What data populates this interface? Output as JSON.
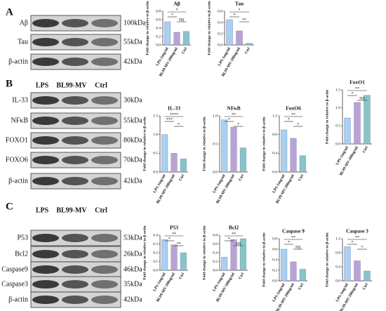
{
  "panels": [
    {
      "letter": "A",
      "rows": [
        {
          "name": "Aβ",
          "size": "100kDa"
        },
        {
          "name": "Tau",
          "size": "55kDa"
        },
        {
          "name": "β-actin",
          "size": "42kDa"
        }
      ]
    },
    {
      "letter": "B",
      "lanes": [
        "LPS",
        "BL99-MV",
        "Ctrl"
      ],
      "rows": [
        {
          "name": "IL-33",
          "size": "30kDa"
        },
        {
          "name": "NFκB",
          "size": "55kDa"
        },
        {
          "name": "FOXO1",
          "size": "80kDa"
        },
        {
          "name": "FOXO6",
          "size": "70kDa"
        },
        {
          "name": "β-actin",
          "size": "42kDa"
        }
      ]
    },
    {
      "letter": "C",
      "lanes": [
        "LPS",
        "BL99-MV",
        "Ctrl"
      ],
      "rows": [
        {
          "name": "P53",
          "size": "53kDa"
        },
        {
          "name": "Bcl2",
          "size": "26kDa"
        },
        {
          "name": "Caspase9",
          "size": "46kDa"
        },
        {
          "name": "Caspase3",
          "size": "35kDa"
        },
        {
          "name": "β-actin",
          "size": "42kDa"
        }
      ]
    }
  ],
  "chart_data": [
    {
      "type": "bar",
      "title": "Aβ",
      "ylabel": "Fold change to relative to β-actin",
      "categories": [
        "LPS-1mg/ml",
        "BL99-MV-200ug/ml",
        "Ctrl"
      ],
      "values": [
        0.55,
        0.3,
        0.32
      ],
      "colors": [
        "#a9d0f0",
        "#b9a2d6",
        "#86c5c9"
      ],
      "ylim": [
        0,
        0.8
      ],
      "yticks": [
        {
          "value": 0,
          "label": "0.0"
        },
        {
          "value": 0.2,
          "label": "0.2"
        },
        {
          "value": 0.4,
          "label": "0.4"
        },
        {
          "value": 0.6,
          "label": "0.6"
        },
        {
          "value": 0.8,
          "label": "0.8"
        }
      ],
      "annotations": [
        {
          "label": "*",
          "pair": [
            0,
            2
          ]
        },
        {
          "label": "*",
          "pair": [
            0,
            1
          ]
        },
        {
          "label": "NS",
          "pair": [
            1,
            2
          ]
        }
      ]
    },
    {
      "type": "bar",
      "title": "Tau",
      "ylabel": "Fold change to relative to β-actin",
      "categories": [
        "LPS-1mg/ml",
        "BL99-MV-200ug/ml",
        "Ctrl"
      ],
      "values": [
        0.45,
        0.25,
        0.03
      ],
      "colors": [
        "#a9d0f0",
        "#b9a2d6",
        "#86c5c9"
      ],
      "ylim": [
        0,
        0.6
      ],
      "yticks": [
        {
          "value": 0,
          "label": "0.0"
        },
        {
          "value": 0.2,
          "label": "0.2"
        },
        {
          "value": 0.4,
          "label": "0.4"
        },
        {
          "value": 0.6,
          "label": "0.6"
        }
      ],
      "annotations": [
        {
          "label": "*",
          "pair": [
            0,
            2
          ]
        },
        {
          "label": "*",
          "pair": [
            0,
            1
          ]
        },
        {
          "label": "**",
          "pair": [
            1,
            2
          ]
        }
      ]
    },
    {
      "type": "bar",
      "title": "IL-33",
      "ylabel": "Fold change to relative to β-actin",
      "categories": [
        "LPS-1mg/ml",
        "BL99-MV-200ug/ml",
        "Ctrl"
      ],
      "values": [
        1.0,
        0.5,
        0.35
      ],
      "colors": [
        "#a9d0f0",
        "#b9a2d6",
        "#86c5c9"
      ],
      "ylim": [
        0,
        1.5
      ],
      "yticks": [
        {
          "value": 0,
          "label": "0.0"
        },
        {
          "value": 0.5,
          "label": "0.5"
        },
        {
          "value": 1,
          "label": "1.0"
        },
        {
          "value": 1.5,
          "label": "1.5"
        }
      ],
      "annotations": [
        {
          "label": "****",
          "pair": [
            0,
            2
          ]
        },
        {
          "label": "***",
          "pair": [
            0,
            1
          ]
        },
        {
          "label": "*",
          "pair": [
            1,
            2
          ]
        }
      ]
    },
    {
      "type": "bar",
      "title": "NFκB",
      "ylabel": "Fold change to relative to β-actin",
      "categories": [
        "LPS-1mg/ml",
        "BL99-MV-200ug/ml",
        "Ctrl"
      ],
      "values": [
        0.93,
        0.8,
        0.43
      ],
      "colors": [
        "#a9d0f0",
        "#b9a2d6",
        "#86c5c9"
      ],
      "ylim": [
        0,
        1.0
      ],
      "yticks": [
        {
          "value": 0,
          "label": "0.0"
        },
        {
          "value": 0.5,
          "label": "0.5"
        },
        {
          "value": 1,
          "label": "1.0"
        }
      ],
      "annotations": [
        {
          "label": "**",
          "pair": [
            0,
            2
          ]
        },
        {
          "label": "*",
          "pair": [
            0,
            1
          ]
        },
        {
          "label": "*",
          "pair": [
            1,
            2
          ]
        }
      ]
    },
    {
      "type": "bar",
      "title": "FoxO6",
      "ylabel": "Fold change to relative to β-actin",
      "categories": [
        "LPS-1mg/ml",
        "BL99-MV-200ug/ml",
        "Ctrl"
      ],
      "values": [
        0.9,
        0.72,
        0.35
      ],
      "colors": [
        "#a9d0f0",
        "#b9a2d6",
        "#86c5c9"
      ],
      "ylim": [
        0,
        1.2
      ],
      "yticks": [
        {
          "value": 0,
          "label": "0.0"
        },
        {
          "value": 0.4,
          "label": "0.4"
        },
        {
          "value": 0.8,
          "label": "0.8"
        },
        {
          "value": 1.2,
          "label": "1.2"
        }
      ],
      "annotations": [
        {
          "label": "**",
          "pair": [
            0,
            2
          ]
        },
        {
          "label": "*",
          "pair": [
            0,
            1
          ]
        },
        {
          "label": "*",
          "pair": [
            1,
            2
          ]
        }
      ]
    },
    {
      "type": "bar",
      "title": "FoxO1",
      "ylabel": "Fold change to relative to β-actin",
      "categories": [
        "LPS-1mg/ml",
        "BL99-MV-200ug/ml",
        "Ctrl"
      ],
      "values": [
        0.72,
        1.15,
        1.35
      ],
      "colors": [
        "#a9d0f0",
        "#b9a2d6",
        "#86c5c9"
      ],
      "ylim": [
        0,
        1.5
      ],
      "yticks": [
        {
          "value": 0,
          "label": "0.0"
        },
        {
          "value": 0.5,
          "label": "0.5"
        },
        {
          "value": 1,
          "label": "1.0"
        },
        {
          "value": 1.5,
          "label": "1.5"
        }
      ],
      "annotations": [
        {
          "label": "**",
          "pair": [
            0,
            2
          ]
        },
        {
          "label": "*",
          "pair": [
            0,
            1
          ]
        },
        {
          "label": "NS",
          "pair": [
            1,
            2
          ]
        }
      ]
    },
    {
      "type": "bar",
      "title": "P53",
      "ylabel": "Fold change to relative to β-actin",
      "categories": [
        "LPS-1mg/ml",
        "BL99-MV-200ug/ml",
        "Ctrl"
      ],
      "values": [
        0.35,
        0.29,
        0.2
      ],
      "colors": [
        "#a9d0f0",
        "#b9a2d6",
        "#86c5c9"
      ],
      "ylim": [
        0,
        0.4
      ],
      "yticks": [
        {
          "value": 0,
          "label": "0.0"
        },
        {
          "value": 0.1,
          "label": "0.1"
        },
        {
          "value": 0.2,
          "label": "0.2"
        },
        {
          "value": 0.3,
          "label": "0.3"
        },
        {
          "value": 0.4,
          "label": "0.4"
        }
      ],
      "annotations": [
        {
          "label": "**",
          "pair": [
            0,
            2
          ]
        },
        {
          "label": "*",
          "pair": [
            0,
            1
          ]
        },
        {
          "label": "**",
          "pair": [
            1,
            2
          ]
        }
      ]
    },
    {
      "type": "bar",
      "title": "Bcl2",
      "ylabel": "Fold change to relative to β-actin",
      "categories": [
        "LPS-1mg/ml",
        "BL99-MV-200ug/ml",
        "Ctrl"
      ],
      "values": [
        0.3,
        0.7,
        0.72
      ],
      "colors": [
        "#a9d0f0",
        "#b9a2d6",
        "#86c5c9"
      ],
      "ylim": [
        0,
        0.8
      ],
      "yticks": [
        {
          "value": 0,
          "label": "0.0"
        },
        {
          "value": 0.2,
          "label": "0.2"
        },
        {
          "value": 0.4,
          "label": "0.4"
        },
        {
          "value": 0.6,
          "label": "0.6"
        },
        {
          "value": 0.8,
          "label": "0.8"
        }
      ],
      "annotations": [
        {
          "label": "**",
          "pair": [
            0,
            2
          ]
        },
        {
          "label": "*",
          "pair": [
            0,
            1
          ]
        },
        {
          "label": "NS",
          "pair": [
            1,
            2
          ]
        }
      ]
    },
    {
      "type": "bar",
      "title": "Caspase 9",
      "ylabel": "Fold change to relative to β-actin",
      "categories": [
        "LPS-1mg/ml",
        "BL99-MV-200ug/ml",
        "Ctrl"
      ],
      "values": [
        0.6,
        0.36,
        0.22
      ],
      "colors": [
        "#a9d0f0",
        "#b9a2d6",
        "#86c5c9"
      ],
      "ylim": [
        0,
        0.8
      ],
      "yticks": [
        {
          "value": 0,
          "label": "0.0"
        },
        {
          "value": 0.2,
          "label": "0.2"
        },
        {
          "value": 0.4,
          "label": "0.4"
        },
        {
          "value": 0.6,
          "label": "0.6"
        },
        {
          "value": 0.8,
          "label": "0.8"
        }
      ],
      "annotations": [
        {
          "label": "**",
          "pair": [
            0,
            2
          ]
        },
        {
          "label": "*",
          "pair": [
            0,
            1
          ]
        },
        {
          "label": "NS",
          "pair": [
            1,
            2
          ]
        }
      ]
    },
    {
      "type": "bar",
      "title": "Caspase 3",
      "ylabel": "Fold change to relative to β-actin",
      "categories": [
        "LPS-1mg/ml",
        "BL99-MV-200ug/ml",
        "Ctrl"
      ],
      "values": [
        0.97,
        0.57,
        0.28
      ],
      "colors": [
        "#a9d0f0",
        "#b9a2d6",
        "#86c5c9"
      ],
      "ylim": [
        0,
        1.2
      ],
      "yticks": [
        {
          "value": 0,
          "label": "0.0"
        },
        {
          "value": 0.4,
          "label": "0.4"
        },
        {
          "value": 0.8,
          "label": "0.8"
        },
        {
          "value": 1.2,
          "label": "1.2"
        }
      ],
      "annotations": [
        {
          "label": "**",
          "pair": [
            0,
            2
          ]
        },
        {
          "label": "*",
          "pair": [
            0,
            1
          ]
        },
        {
          "label": "*",
          "pair": [
            1,
            2
          ]
        }
      ]
    }
  ]
}
